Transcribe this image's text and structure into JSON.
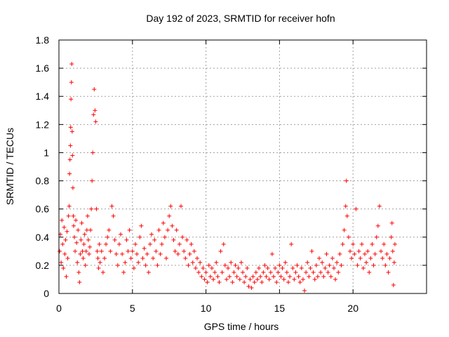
{
  "chart_data": {
    "type": "scatter",
    "title": "Day 192 of 2023, SRMTID for receiver hofn",
    "xlabel": "GPS time / hours",
    "ylabel": "SRMTID / TECUs",
    "xlim": [
      0,
      25
    ],
    "ylim": [
      0,
      1.8
    ],
    "xticks": [
      0,
      5,
      10,
      15,
      20
    ],
    "xtick_labels": [
      "0",
      "5",
      "10",
      "15",
      "20"
    ],
    "yticks": [
      0,
      0.2,
      0.4,
      0.6,
      0.8,
      1.0,
      1.2,
      1.4,
      1.6,
      1.8
    ],
    "ytick_labels": [
      "0",
      "0.2",
      "0.4",
      "0.6",
      "0.8",
      "1",
      "1.2",
      "1.4",
      "1.6",
      "1.8"
    ],
    "grid": true,
    "marker": "+",
    "color": "#ff0000",
    "series": [
      {
        "name": "SRMTID",
        "points": [
          [
            0.05,
            0.3
          ],
          [
            0.1,
            0.42
          ],
          [
            0.15,
            0.22
          ],
          [
            0.2,
            0.52
          ],
          [
            0.25,
            0.35
          ],
          [
            0.3,
            0.18
          ],
          [
            0.35,
            0.47
          ],
          [
            0.4,
            0.28
          ],
          [
            0.45,
            0.38
          ],
          [
            0.5,
            0.12
          ],
          [
            0.55,
            0.44
          ],
          [
            0.6,
            0.25
          ],
          [
            0.65,
            0.55
          ],
          [
            0.7,
            0.62
          ],
          [
            0.72,
            0.85
          ],
          [
            0.75,
            0.95
          ],
          [
            0.78,
            1.05
          ],
          [
            0.8,
            1.18
          ],
          [
            0.82,
            1.38
          ],
          [
            0.85,
            1.5
          ],
          [
            0.87,
            1.63
          ],
          [
            0.9,
            1.15
          ],
          [
            0.92,
            0.98
          ],
          [
            0.95,
            0.75
          ],
          [
            0.98,
            0.55
          ],
          [
            1.0,
            0.48
          ],
          [
            1.05,
            0.4
          ],
          [
            1.1,
            0.3
          ],
          [
            1.15,
            0.52
          ],
          [
            1.2,
            0.36
          ],
          [
            1.25,
            0.22
          ],
          [
            1.3,
            0.45
          ],
          [
            1.35,
            0.15
          ],
          [
            1.4,
            0.08
          ],
          [
            1.45,
            0.28
          ],
          [
            1.5,
            0.38
          ],
          [
            1.55,
            0.5
          ],
          [
            1.6,
            0.3
          ],
          [
            1.65,
            0.25
          ],
          [
            1.7,
            0.35
          ],
          [
            1.75,
            0.42
          ],
          [
            1.8,
            0.2
          ],
          [
            1.85,
            0.3
          ],
          [
            1.9,
            0.45
          ],
          [
            1.95,
            0.55
          ],
          [
            2.0,
            0.38
          ],
          [
            2.05,
            0.28
          ],
          [
            2.1,
            0.33
          ],
          [
            2.15,
            0.45
          ],
          [
            2.2,
            0.6
          ],
          [
            2.25,
            0.8
          ],
          [
            2.3,
            1.0
          ],
          [
            2.35,
            1.27
          ],
          [
            2.4,
            1.45
          ],
          [
            2.45,
            1.3
          ],
          [
            2.5,
            1.22
          ],
          [
            2.55,
            0.6
          ],
          [
            2.6,
            0.3
          ],
          [
            2.65,
            0.25
          ],
          [
            2.7,
            0.18
          ],
          [
            2.75,
            0.35
          ],
          [
            2.8,
            0.22
          ],
          [
            2.9,
            0.3
          ],
          [
            3.0,
            0.15
          ],
          [
            3.1,
            0.25
          ],
          [
            3.2,
            0.35
          ],
          [
            3.3,
            0.4
          ],
          [
            3.4,
            0.45
          ],
          [
            3.5,
            0.3
          ],
          [
            3.6,
            0.62
          ],
          [
            3.7,
            0.55
          ],
          [
            3.8,
            0.38
          ],
          [
            3.9,
            0.28
          ],
          [
            4.0,
            0.2
          ],
          [
            4.1,
            0.35
          ],
          [
            4.2,
            0.42
          ],
          [
            4.3,
            0.28
          ],
          [
            4.4,
            0.15
          ],
          [
            4.5,
            0.22
          ],
          [
            4.6,
            0.38
          ],
          [
            4.7,
            0.3
          ],
          [
            4.8,
            0.45
          ],
          [
            4.9,
            0.25
          ],
          [
            5.0,
            0.3
          ],
          [
            5.1,
            0.18
          ],
          [
            5.2,
            0.35
          ],
          [
            5.3,
            0.28
          ],
          [
            5.4,
            0.22
          ],
          [
            5.5,
            0.4
          ],
          [
            5.6,
            0.48
          ],
          [
            5.7,
            0.25
          ],
          [
            5.8,
            0.32
          ],
          [
            5.9,
            0.2
          ],
          [
            6.0,
            0.28
          ],
          [
            6.1,
            0.15
          ],
          [
            6.2,
            0.35
          ],
          [
            6.3,
            0.42
          ],
          [
            6.4,
            0.25
          ],
          [
            6.5,
            0.38
          ],
          [
            6.6,
            0.3
          ],
          [
            6.7,
            0.2
          ],
          [
            6.8,
            0.45
          ],
          [
            6.9,
            0.28
          ],
          [
            7.0,
            0.35
          ],
          [
            7.1,
            0.5
          ],
          [
            7.2,
            0.4
          ],
          [
            7.3,
            0.25
          ],
          [
            7.4,
            0.45
          ],
          [
            7.5,
            0.55
          ],
          [
            7.6,
            0.62
          ],
          [
            7.7,
            0.48
          ],
          [
            7.8,
            0.38
          ],
          [
            7.9,
            0.3
          ],
          [
            8.0,
            0.45
          ],
          [
            8.1,
            0.28
          ],
          [
            8.2,
            0.35
          ],
          [
            8.3,
            0.62
          ],
          [
            8.4,
            0.4
          ],
          [
            8.5,
            0.3
          ],
          [
            8.6,
            0.25
          ],
          [
            8.7,
            0.38
          ],
          [
            8.8,
            0.2
          ],
          [
            8.9,
            0.28
          ],
          [
            9.0,
            0.35
          ],
          [
            9.1,
            0.22
          ],
          [
            9.2,
            0.3
          ],
          [
            9.3,
            0.18
          ],
          [
            9.4,
            0.25
          ],
          [
            9.5,
            0.15
          ],
          [
            9.6,
            0.22
          ],
          [
            9.7,
            0.12
          ],
          [
            9.8,
            0.18
          ],
          [
            9.9,
            0.1
          ],
          [
            10.0,
            0.15
          ],
          [
            10.1,
            0.08
          ],
          [
            10.2,
            0.2
          ],
          [
            10.3,
            0.12
          ],
          [
            10.4,
            0.18
          ],
          [
            10.5,
            0.1
          ],
          [
            10.6,
            0.15
          ],
          [
            10.7,
            0.22
          ],
          [
            10.8,
            0.12
          ],
          [
            10.9,
            0.08
          ],
          [
            11.0,
            0.3
          ],
          [
            11.1,
            0.15
          ],
          [
            11.2,
            0.35
          ],
          [
            11.3,
            0.2
          ],
          [
            11.4,
            0.1
          ],
          [
            11.5,
            0.18
          ],
          [
            11.6,
            0.12
          ],
          [
            11.7,
            0.22
          ],
          [
            11.8,
            0.08
          ],
          [
            11.9,
            0.15
          ],
          [
            12.0,
            0.2
          ],
          [
            12.1,
            0.12
          ],
          [
            12.2,
            0.18
          ],
          [
            12.3,
            0.1
          ],
          [
            12.4,
            0.22
          ],
          [
            12.5,
            0.15
          ],
          [
            12.6,
            0.08
          ],
          [
            12.7,
            0.12
          ],
          [
            12.8,
            0.18
          ],
          [
            12.9,
            0.05
          ],
          [
            13.0,
            0.1
          ],
          [
            13.1,
            0.04
          ],
          [
            13.2,
            0.12
          ],
          [
            13.3,
            0.08
          ],
          [
            13.4,
            0.15
          ],
          [
            13.5,
            0.1
          ],
          [
            13.6,
            0.18
          ],
          [
            13.7,
            0.12
          ],
          [
            13.8,
            0.08
          ],
          [
            13.9,
            0.15
          ],
          [
            14.0,
            0.2
          ],
          [
            14.1,
            0.12
          ],
          [
            14.2,
            0.18
          ],
          [
            14.3,
            0.1
          ],
          [
            14.4,
            0.15
          ],
          [
            14.5,
            0.28
          ],
          [
            14.6,
            0.12
          ],
          [
            14.7,
            0.18
          ],
          [
            14.8,
            0.08
          ],
          [
            14.9,
            0.15
          ],
          [
            15.0,
            0.2
          ],
          [
            15.1,
            0.12
          ],
          [
            15.2,
            0.18
          ],
          [
            15.3,
            0.1
          ],
          [
            15.4,
            0.22
          ],
          [
            15.5,
            0.15
          ],
          [
            15.6,
            0.08
          ],
          [
            15.7,
            0.12
          ],
          [
            15.8,
            0.35
          ],
          [
            15.9,
            0.18
          ],
          [
            16.0,
            0.1
          ],
          [
            16.1,
            0.15
          ],
          [
            16.2,
            0.2
          ],
          [
            16.3,
            0.12
          ],
          [
            16.4,
            0.08
          ],
          [
            16.5,
            0.18
          ],
          [
            16.6,
            0.1
          ],
          [
            16.7,
            0.02
          ],
          [
            16.8,
            0.15
          ],
          [
            16.9,
            0.22
          ],
          [
            17.0,
            0.12
          ],
          [
            17.1,
            0.18
          ],
          [
            17.2,
            0.3
          ],
          [
            17.3,
            0.15
          ],
          [
            17.4,
            0.1
          ],
          [
            17.5,
            0.2
          ],
          [
            17.6,
            0.12
          ],
          [
            17.7,
            0.25
          ],
          [
            17.8,
            0.15
          ],
          [
            17.9,
            0.22
          ],
          [
            18.0,
            0.12
          ],
          [
            18.1,
            0.18
          ],
          [
            18.2,
            0.28
          ],
          [
            18.3,
            0.15
          ],
          [
            18.4,
            0.2
          ],
          [
            18.5,
            0.12
          ],
          [
            18.6,
            0.25
          ],
          [
            18.7,
            0.18
          ],
          [
            18.8,
            0.1
          ],
          [
            18.9,
            0.22
          ],
          [
            19.0,
            0.15
          ],
          [
            19.1,
            0.28
          ],
          [
            19.2,
            0.2
          ],
          [
            19.3,
            0.35
          ],
          [
            19.4,
            0.45
          ],
          [
            19.5,
            0.62
          ],
          [
            19.55,
            0.8
          ],
          [
            19.6,
            0.55
          ],
          [
            19.7,
            0.4
          ],
          [
            19.8,
            0.3
          ],
          [
            19.9,
            0.25
          ],
          [
            20.0,
            0.35
          ],
          [
            20.1,
            0.28
          ],
          [
            20.2,
            0.6
          ],
          [
            20.3,
            0.2
          ],
          [
            20.4,
            0.3
          ],
          [
            20.5,
            0.25
          ],
          [
            20.6,
            0.35
          ],
          [
            20.7,
            0.18
          ],
          [
            20.8,
            0.28
          ],
          [
            20.9,
            0.22
          ],
          [
            21.0,
            0.3
          ],
          [
            21.1,
            0.15
          ],
          [
            21.2,
            0.25
          ],
          [
            21.3,
            0.35
          ],
          [
            21.4,
            0.2
          ],
          [
            21.5,
            0.28
          ],
          [
            21.6,
            0.4
          ],
          [
            21.7,
            0.48
          ],
          [
            21.8,
            0.62
          ],
          [
            21.9,
            0.3
          ],
          [
            22.0,
            0.25
          ],
          [
            22.1,
            0.35
          ],
          [
            22.2,
            0.2
          ],
          [
            22.3,
            0.28
          ],
          [
            22.4,
            0.15
          ],
          [
            22.5,
            0.25
          ],
          [
            22.6,
            0.4
          ],
          [
            22.65,
            0.5
          ],
          [
            22.7,
            0.3
          ],
          [
            22.75,
            0.06
          ],
          [
            22.8,
            0.22
          ],
          [
            22.85,
            0.35
          ]
        ]
      }
    ]
  }
}
